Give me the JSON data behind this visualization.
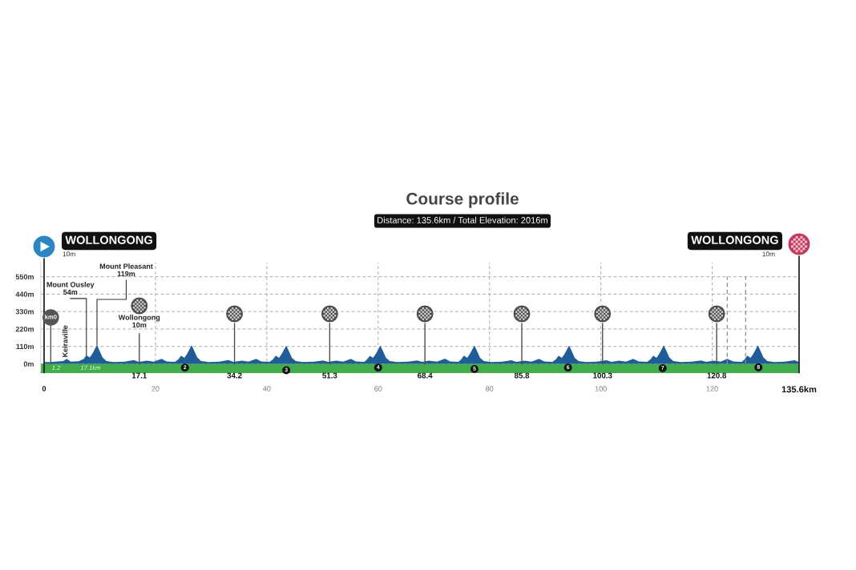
{
  "chart_data": {
    "type": "area",
    "title": "Course profile",
    "subtitle": "Distance: 135.6km / Total Elevation: 2016m",
    "series": [
      {
        "color": "#1e5d9a",
        "x": [
          0,
          1.2,
          2.5,
          3.4,
          4.1,
          4.8,
          6.2,
          7.1,
          7.6,
          8.2,
          8.7,
          9.5,
          10.0,
          10.5,
          11.2,
          12.5,
          14.5,
          16.1,
          17.0,
          18.5,
          19.7,
          21.1,
          22.0,
          23.5,
          24.1,
          24.6,
          25.2,
          25.7,
          26.5,
          27.0,
          27.5,
          28.2,
          29.5,
          31.5,
          33.1,
          34.0,
          35.5,
          36.7,
          38.1,
          39.0,
          40.5,
          41.1,
          41.6,
          42.2,
          42.7,
          43.5,
          44.0,
          44.5,
          45.2,
          46.5,
          48.5,
          50.1,
          51.0,
          52.5,
          53.7,
          55.1,
          56.0,
          57.5,
          58.0,
          58.5,
          59.1,
          59.6,
          60.4,
          60.9,
          61.4,
          62.1,
          63.4,
          65.4,
          67.0,
          67.9,
          69.1,
          70.6,
          72.0,
          72.9,
          74.4,
          74.9,
          75.4,
          76.0,
          76.5,
          77.3,
          77.8,
          78.3,
          79.0,
          80.3,
          82.3,
          83.9,
          84.8,
          86.3,
          87.5,
          88.9,
          89.8,
          91.3,
          91.9,
          92.4,
          93.0,
          93.5,
          94.3,
          94.8,
          95.3,
          96.0,
          97.3,
          99.3,
          101.0,
          101.9,
          103.3,
          104.5,
          105.8,
          106.8,
          108.3,
          108.9,
          109.4,
          110.0,
          110.5,
          111.3,
          111.8,
          112.3,
          113.0,
          114.3,
          116.3,
          118.0,
          118.9,
          120.3,
          121.5,
          122.7,
          123.8,
          125.3,
          125.8,
          126.3,
          126.9,
          127.4,
          128.2,
          128.7,
          129.2,
          129.9,
          131.2,
          133.0,
          134.8,
          135.6
        ],
        "values": [
          11,
          12,
          15,
          18,
          31,
          14,
          16,
          30,
          54,
          40,
          66,
          119,
          80,
          40,
          18,
          12,
          14,
          24,
          13,
          20,
          14,
          32,
          15,
          13,
          28,
          52,
          38,
          65,
          118,
          80,
          40,
          18,
          12,
          14,
          24,
          13,
          20,
          14,
          32,
          15,
          13,
          28,
          52,
          38,
          65,
          115,
          78,
          38,
          18,
          12,
          14,
          22,
          13,
          20,
          14,
          31,
          15,
          13,
          28,
          50,
          38,
          64,
          115,
          78,
          38,
          18,
          12,
          14,
          22,
          13,
          20,
          14,
          33,
          15,
          13,
          28,
          52,
          38,
          64,
          116,
          78,
          38,
          18,
          12,
          14,
          23,
          13,
          20,
          14,
          32,
          15,
          13,
          28,
          52,
          38,
          64,
          116,
          78,
          38,
          18,
          12,
          14,
          23,
          13,
          20,
          14,
          32,
          15,
          13,
          28,
          52,
          38,
          64,
          118,
          80,
          40,
          18,
          12,
          14,
          22,
          13,
          20,
          14,
          32,
          15,
          13,
          28,
          52,
          38,
          65,
          118,
          80,
          40,
          18,
          12,
          14,
          23,
          11
        ]
      }
    ],
    "xlim": [
      -0.6,
      135.6
    ],
    "xticks": [
      0,
      20,
      40,
      60,
      80,
      100,
      120,
      {
        "value": 135.6,
        "label": "135.6km"
      }
    ],
    "ylim": [
      -55,
      640
    ],
    "yticks": [
      {
        "value": 0,
        "label": "0m"
      },
      {
        "value": 110,
        "label": "110m"
      },
      {
        "value": 220,
        "label": "220m"
      },
      {
        "value": 330,
        "label": "330m"
      },
      {
        "value": 440,
        "label": "440m"
      },
      {
        "value": 550,
        "label": "550m"
      }
    ],
    "grid": true,
    "bands": [
      {
        "axis": "y",
        "from": -55,
        "to": 0,
        "color": "#3fae49"
      }
    ],
    "ref_lines": [
      {
        "axis": "x",
        "value": 0,
        "label": "WOLLONGONG\n10m",
        "color": "#1a1a1a"
      },
      {
        "axis": "x",
        "value": 17.1,
        "label": "17.1",
        "color": "#4d4d4d"
      },
      {
        "axis": "x",
        "value": 34.2,
        "label": "34.2",
        "color": "#4d4d4d"
      },
      {
        "axis": "x",
        "value": 51.3,
        "label": "51.3",
        "color": "#4d4d4d"
      },
      {
        "axis": "x",
        "value": 68.4,
        "label": "68.4",
        "color": "#4d4d4d"
      },
      {
        "axis": "x",
        "value": 85.8,
        "label": "85.8",
        "color": "#4d4d4d"
      },
      {
        "axis": "x",
        "value": 100.3,
        "label": "100.3",
        "color": "#4d4d4d"
      },
      {
        "axis": "x",
        "value": 120.8,
        "label": "120.8",
        "color": "#4d4d4d"
      },
      {
        "axis": "x",
        "value": 122.7,
        "color": "#8c8c8c",
        "line_style": "dashed"
      },
      {
        "axis": "x",
        "value": 126.0,
        "color": "#8c8c8c",
        "line_style": "dashed"
      },
      {
        "axis": "x",
        "value": 135.6,
        "label": "WOLLONGONG\n10m",
        "color": "#1a1a1a"
      }
    ],
    "annotations": [
      {
        "text": "km0",
        "x": 1.2,
        "y": 0
      },
      "1.2",
      "17.1km",
      {
        "text": "Keiraville",
        "x": 4.1,
        "y": 31
      },
      {
        "text": "Mount Ousley\n54m",
        "x": 7.6,
        "y": 54
      },
      {
        "text": "Mount Pleasant\n119m",
        "x": 9.5,
        "y": 119
      },
      "Wollongong\n10m",
      {
        "text": "2",
        "x": 25.3,
        "y": -24
      },
      {
        "text": "3",
        "x": 43.5,
        "y": -40
      },
      {
        "text": "4",
        "x": 60.0,
        "y": -24
      },
      {
        "text": "5",
        "x": 77.3,
        "y": -33
      },
      {
        "text": "6",
        "x": 94.1,
        "y": -24
      },
      {
        "text": "7",
        "x": 111.1,
        "y": -28
      },
      {
        "text": "8",
        "x": 128.3,
        "y": -23
      }
    ]
  }
}
